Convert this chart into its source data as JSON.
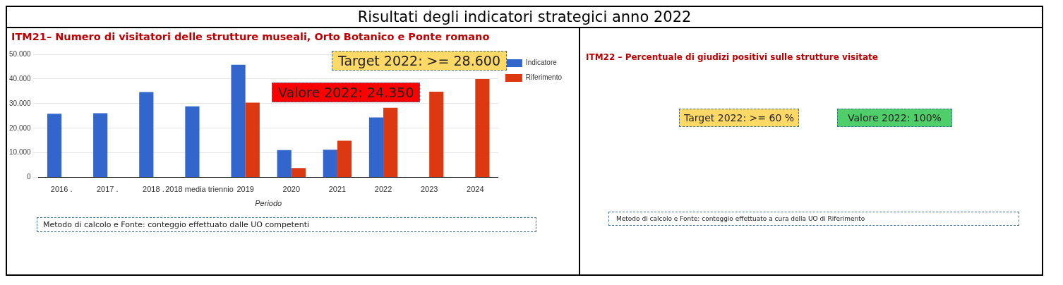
{
  "chart_data": [
    {
      "type": "other",
      "title": "Risultati degli indicatori strategici anno 2022"
    },
    {
      "type": "bar",
      "title": "ITM21– Numero di visitatori delle strutture museali, Orto Botanico e Ponte romano",
      "xlabel": "Periodo",
      "categories": [
        "2016 .",
        "2017 .",
        "2018 .",
        "2018 media triennio",
        "2019",
        "2020",
        "2021",
        "2022",
        "2023",
        "2024"
      ],
      "series": [
        {
          "name": "Indicatore",
          "color": "#3366cc",
          "values": [
            25900,
            26100,
            34700,
            28900,
            45800,
            11100,
            11300,
            24350,
            null,
            null
          ]
        },
        {
          "name": "Riferimento",
          "color": "#dc3912",
          "values": [
            null,
            null,
            null,
            null,
            30400,
            3800,
            14900,
            28300,
            34800,
            40000
          ]
        }
      ],
      "ylim": [
        0,
        50000
      ],
      "yticks": [
        {
          "value": 0,
          "label": "0"
        },
        {
          "value": 10000,
          "label": "10.000"
        },
        {
          "value": 20000,
          "label": "20.000"
        },
        {
          "value": 30000,
          "label": "30.000"
        },
        {
          "value": 40000,
          "label": "40.000"
        },
        {
          "value": 50000,
          "label": "50.000"
        }
      ],
      "grid": "y",
      "legend": "top right",
      "annotations": [
        "Target 2022: >= 28.600",
        "Valore 2022: 24.350",
        "Metodo di calcolo e Fonte: conteggio effettuato dalle UO competenti"
      ]
    },
    {
      "type": "other",
      "title": "ITM22 – Percentuale di giudizi positivi sulle strutture visitate",
      "annotations": [
        "Target 2022: >= 60 %",
        "Valore 2022: 100%",
        "Metodo di calcolo e Fonte: conteggio effettuato a cura della UO di Riferimento"
      ]
    }
  ]
}
